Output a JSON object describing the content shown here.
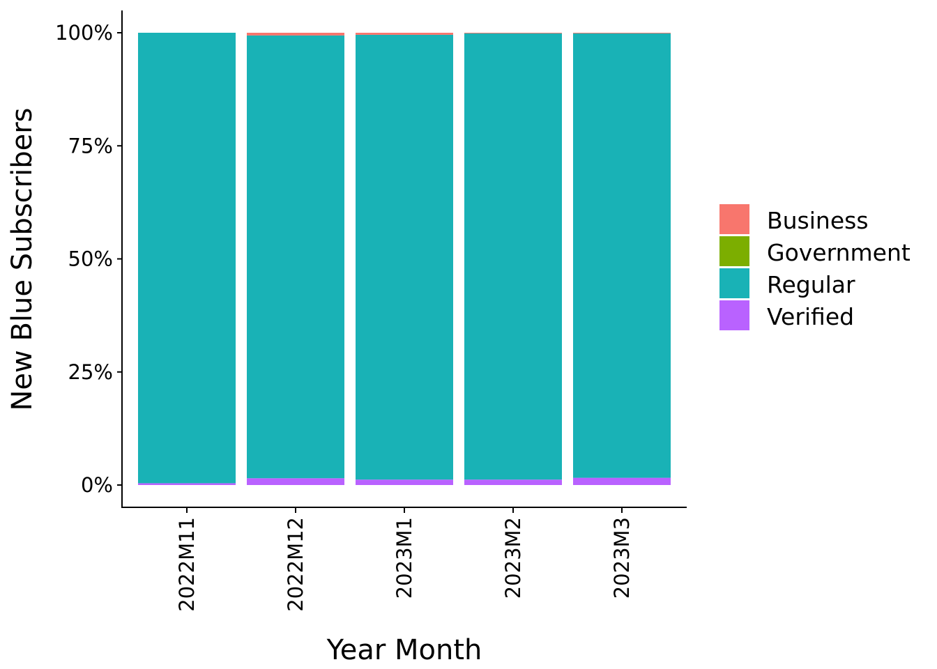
{
  "chart_data": {
    "type": "bar",
    "stacked": "percent",
    "title": "",
    "xlabel": "Year Month",
    "ylabel": "New Blue Subscribers",
    "ylim": [
      0,
      1
    ],
    "yticks": [
      0,
      0.25,
      0.5,
      0.75,
      1
    ],
    "ytick_labels": [
      "0%",
      "25%",
      "50%",
      "75%",
      "100%"
    ],
    "categories": [
      "2022M11",
      "2022M12",
      "2023M1",
      "2023M2",
      "2023M3"
    ],
    "legend_position": "right",
    "series": [
      {
        "name": "Business",
        "color": "#F8766D",
        "values": [
          0.0,
          0.006,
          0.0045,
          0.0015,
          0.0015
        ]
      },
      {
        "name": "Government",
        "color": "#7CAE00",
        "values": [
          0,
          0,
          0,
          0,
          0
        ]
      },
      {
        "name": "Regular",
        "color": "#19B2B6",
        "values": [
          0.996,
          0.979,
          0.9835,
          0.9865,
          0.9825
        ]
      },
      {
        "name": "Verified",
        "color": "#B962FF",
        "values": [
          0.004,
          0.015,
          0.012,
          0.012,
          0.016
        ]
      }
    ]
  }
}
